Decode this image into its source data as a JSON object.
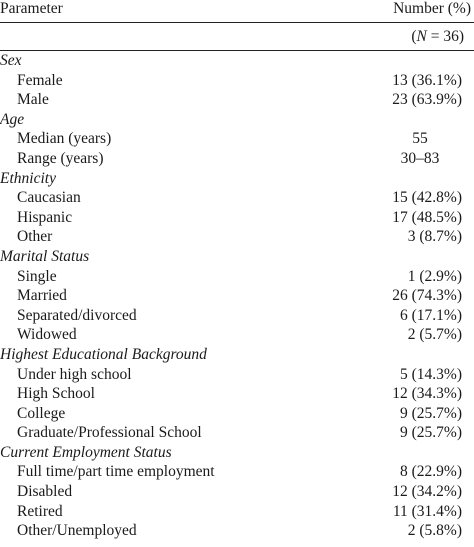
{
  "header": {
    "parameter": "Parameter",
    "number": "Number (%)"
  },
  "n_label": {
    "open": "(",
    "n": "N",
    "eq": " = 36)"
  },
  "sections": [
    {
      "title": "Sex",
      "rows": [
        {
          "label": "Female",
          "value": "13 (36.1%)"
        },
        {
          "label": "Male",
          "value": "23 (63.9%)"
        }
      ]
    },
    {
      "title": "Age",
      "rows": [
        {
          "label": "Median (years)",
          "value": "55",
          "center": true
        },
        {
          "label": "Range (years)",
          "value": "30–83",
          "center": true
        }
      ]
    },
    {
      "title": "Ethnicity",
      "rows": [
        {
          "label": "Caucasian",
          "value": "15 (42.8%)"
        },
        {
          "label": "Hispanic",
          "value": "17 (48.5%)"
        },
        {
          "label": "Other",
          "value": "3 (8.7%)"
        }
      ]
    },
    {
      "title": "Marital Status",
      "rows": [
        {
          "label": "Single",
          "value": "1 (2.9%)"
        },
        {
          "label": "Married",
          "value": "26 (74.3%)"
        },
        {
          "label": "Separated/divorced",
          "value": "6 (17.1%)"
        },
        {
          "label": "Widowed",
          "value": "2 (5.7%)"
        }
      ]
    },
    {
      "title": "Highest Educational Background",
      "rows": [
        {
          "label": "Under high school",
          "value": "5 (14.3%)"
        },
        {
          "label": "High School",
          "value": "12 (34.3%)"
        },
        {
          "label": "College",
          "value": "9 (25.7%)"
        },
        {
          "label": "Graduate/Professional School",
          "value": "9 (25.7%)"
        }
      ]
    },
    {
      "title": "Current Employment Status",
      "rows": [
        {
          "label": "Full time/part time employment",
          "value": "8 (22.9%)"
        },
        {
          "label": "Disabled",
          "value": "12 (34.2%)"
        },
        {
          "label": "Retired",
          "value": "11 (31.4%)"
        },
        {
          "label": "Other/Unemployed",
          "value": "2 (5.8%)"
        }
      ]
    }
  ]
}
